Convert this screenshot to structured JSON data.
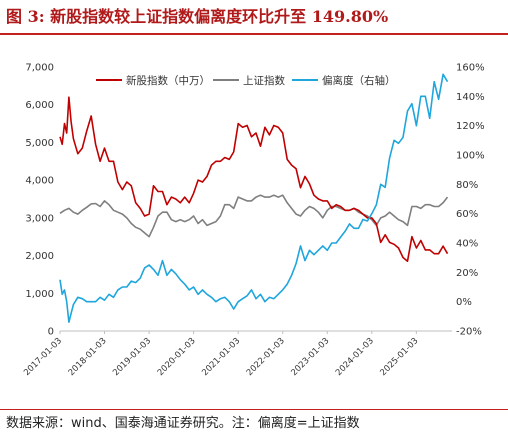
{
  "title": "图 3: 新股指数较上证指数偏离度环比升至 149.80%",
  "source": "数据来源：wind、国泰海通证券研究。注：偏离度=上证指数",
  "colors": {
    "title": "#b11a1a",
    "rule": "#c42020",
    "new_stock": "#c00000",
    "sse": "#7f7f7f",
    "deviation": "#1fa6dd"
  },
  "chart_data": {
    "type": "line",
    "title": "",
    "xlabel": "",
    "ylabel": "",
    "x_ticks": [
      "2017-01-03",
      "2018-01-03",
      "2019-01-03",
      "2020-01-03",
      "2021-01-03",
      "2022-01-03",
      "2023-01-03",
      "2024-01-03",
      "2025-01-03"
    ],
    "y_left": {
      "ticks": [
        "0",
        "1,000",
        "2,000",
        "3,000",
        "4,000",
        "5,000",
        "6,000",
        "7,000"
      ],
      "ylim": [
        0,
        7000
      ]
    },
    "y_right": {
      "ticks": [
        "-20%",
        "0%",
        "20%",
        "40%",
        "60%",
        "80%",
        "100%",
        "120%",
        "140%",
        "160%"
      ],
      "ylim": [
        -20,
        160
      ]
    },
    "xlim": [
      2017.0,
      2025.8
    ],
    "legend_position": "top",
    "series": [
      {
        "name": "新股指数（中万）",
        "axis": "left",
        "color": "#c00000",
        "x": [
          2017.0,
          2017.05,
          2017.1,
          2017.15,
          2017.2,
          2017.25,
          2017.3,
          2017.4,
          2017.5,
          2017.6,
          2017.7,
          2017.8,
          2017.9,
          2018.0,
          2018.1,
          2018.2,
          2018.3,
          2018.4,
          2018.5,
          2018.6,
          2018.7,
          2018.8,
          2018.9,
          2019.0,
          2019.1,
          2019.2,
          2019.3,
          2019.4,
          2019.5,
          2019.6,
          2019.7,
          2019.8,
          2019.9,
          2020.0,
          2020.1,
          2020.2,
          2020.3,
          2020.4,
          2020.5,
          2020.6,
          2020.7,
          2020.8,
          2020.9,
          2021.0,
          2021.1,
          2021.2,
          2021.3,
          2021.4,
          2021.5,
          2021.6,
          2021.7,
          2021.8,
          2021.9,
          2022.0,
          2022.1,
          2022.2,
          2022.3,
          2022.4,
          2022.5,
          2022.6,
          2022.7,
          2022.8,
          2022.9,
          2023.0,
          2023.1,
          2023.2,
          2023.3,
          2023.4,
          2023.5,
          2023.6,
          2023.7,
          2023.8,
          2023.9,
          2024.0,
          2024.1,
          2024.2,
          2024.3,
          2024.4,
          2024.5,
          2024.6,
          2024.7,
          2024.8,
          2024.9,
          2025.0,
          2025.1,
          2025.2,
          2025.3,
          2025.4,
          2025.5,
          2025.6,
          2025.7
        ],
        "values": [
          5150,
          4950,
          5500,
          5250,
          6200,
          5550,
          5100,
          4700,
          4850,
          5300,
          5700,
          4950,
          4500,
          4850,
          4500,
          4500,
          3950,
          3750,
          3950,
          3850,
          3400,
          3250,
          3050,
          3100,
          3850,
          3700,
          3700,
          3350,
          3550,
          3500,
          3400,
          3550,
          3400,
          3650,
          4000,
          3950,
          4100,
          4400,
          4500,
          4500,
          4600,
          4550,
          4750,
          5500,
          5400,
          5450,
          5150,
          5250,
          4900,
          5400,
          5200,
          5450,
          5400,
          5250,
          4550,
          4400,
          4300,
          3800,
          4100,
          3900,
          3600,
          3500,
          3450,
          3450,
          3250,
          3350,
          3300,
          3200,
          3200,
          3250,
          3200,
          3100,
          3000,
          3000,
          2850,
          2350,
          2550,
          2350,
          2300,
          2200,
          1950,
          1850,
          2500,
          2200,
          2400,
          2150,
          2150,
          2050,
          2050,
          2250,
          2050
        ]
      },
      {
        "name": "上证指数",
        "axis": "left",
        "color": "#7f7f7f",
        "x": [
          2017.0,
          2017.1,
          2017.2,
          2017.3,
          2017.4,
          2017.5,
          2017.6,
          2017.7,
          2017.8,
          2017.9,
          2018.0,
          2018.1,
          2018.2,
          2018.3,
          2018.4,
          2018.5,
          2018.6,
          2018.7,
          2018.8,
          2018.9,
          2019.0,
          2019.1,
          2019.2,
          2019.3,
          2019.4,
          2019.5,
          2019.6,
          2019.7,
          2019.8,
          2019.9,
          2020.0,
          2020.1,
          2020.2,
          2020.3,
          2020.4,
          2020.5,
          2020.6,
          2020.7,
          2020.8,
          2020.9,
          2021.0,
          2021.1,
          2021.2,
          2021.3,
          2021.4,
          2021.5,
          2021.6,
          2021.7,
          2021.8,
          2021.9,
          2022.0,
          2022.1,
          2022.2,
          2022.3,
          2022.4,
          2022.5,
          2022.6,
          2022.7,
          2022.8,
          2022.9,
          2023.0,
          2023.1,
          2023.2,
          2023.3,
          2023.4,
          2023.5,
          2023.6,
          2023.7,
          2023.8,
          2023.9,
          2024.0,
          2024.1,
          2024.2,
          2024.3,
          2024.4,
          2024.5,
          2024.6,
          2024.7,
          2024.8,
          2024.9,
          2025.0,
          2025.1,
          2025.2,
          2025.3,
          2025.4,
          2025.5,
          2025.6,
          2025.7
        ],
        "values": [
          3120,
          3200,
          3250,
          3150,
          3100,
          3200,
          3280,
          3370,
          3380,
          3300,
          3450,
          3350,
          3200,
          3150,
          3100,
          3000,
          2850,
          2750,
          2700,
          2600,
          2500,
          2750,
          3050,
          3150,
          3150,
          2950,
          2900,
          2950,
          2900,
          2950,
          3050,
          2850,
          2950,
          2800,
          2850,
          2900,
          3050,
          3350,
          3350,
          3250,
          3550,
          3500,
          3450,
          3450,
          3550,
          3600,
          3550,
          3550,
          3600,
          3550,
          3600,
          3400,
          3250,
          3100,
          3050,
          3200,
          3300,
          3250,
          3150,
          3000,
          3200,
          3300,
          3300,
          3250,
          3200,
          3200,
          3250,
          3150,
          3100,
          3050,
          2950,
          2800,
          3000,
          3050,
          3150,
          3050,
          2950,
          2900,
          2800,
          3300,
          3300,
          3250,
          3350,
          3350,
          3300,
          3300,
          3400,
          3550
        ]
      },
      {
        "name": "偏离度（右轴）",
        "axis": "right",
        "color": "#1fa6dd",
        "x": [
          2017.0,
          2017.05,
          2017.1,
          2017.15,
          2017.2,
          2017.25,
          2017.3,
          2017.4,
          2017.5,
          2017.6,
          2017.7,
          2017.8,
          2017.9,
          2018.0,
          2018.1,
          2018.2,
          2018.3,
          2018.4,
          2018.5,
          2018.6,
          2018.7,
          2018.8,
          2018.9,
          2019.0,
          2019.1,
          2019.2,
          2019.3,
          2019.4,
          2019.5,
          2019.6,
          2019.7,
          2019.8,
          2019.9,
          2020.0,
          2020.1,
          2020.2,
          2020.3,
          2020.4,
          2020.5,
          2020.6,
          2020.7,
          2020.8,
          2020.9,
          2021.0,
          2021.1,
          2021.2,
          2021.3,
          2021.4,
          2021.5,
          2021.6,
          2021.7,
          2021.8,
          2021.9,
          2022.0,
          2022.1,
          2022.2,
          2022.3,
          2022.4,
          2022.5,
          2022.6,
          2022.7,
          2022.8,
          2022.9,
          2023.0,
          2023.1,
          2023.2,
          2023.3,
          2023.4,
          2023.5,
          2023.6,
          2023.7,
          2023.8,
          2023.9,
          2024.0,
          2024.1,
          2024.2,
          2024.3,
          2024.4,
          2024.5,
          2024.6,
          2024.7,
          2024.8,
          2024.9,
          2025.0,
          2025.1,
          2025.2,
          2025.3,
          2025.4,
          2025.5,
          2025.6,
          2025.7
        ],
        "values": [
          15,
          5,
          8,
          0,
          -14,
          -8,
          -2,
          3,
          2,
          0,
          0,
          0,
          3,
          1,
          5,
          3,
          8,
          10,
          10,
          14,
          13,
          16,
          23,
          25,
          22,
          18,
          28,
          18,
          22,
          19,
          15,
          12,
          8,
          10,
          5,
          8,
          5,
          3,
          0,
          2,
          3,
          0,
          -5,
          0,
          2,
          4,
          8,
          2,
          5,
          0,
          3,
          2,
          5,
          8,
          12,
          18,
          26,
          38,
          28,
          35,
          32,
          35,
          38,
          35,
          40,
          40,
          44,
          48,
          53,
          50,
          50,
          56,
          55,
          60,
          66,
          80,
          78,
          98,
          110,
          108,
          112,
          130,
          135,
          120,
          140,
          140,
          125,
          150,
          138,
          155,
          150
        ]
      }
    ]
  }
}
